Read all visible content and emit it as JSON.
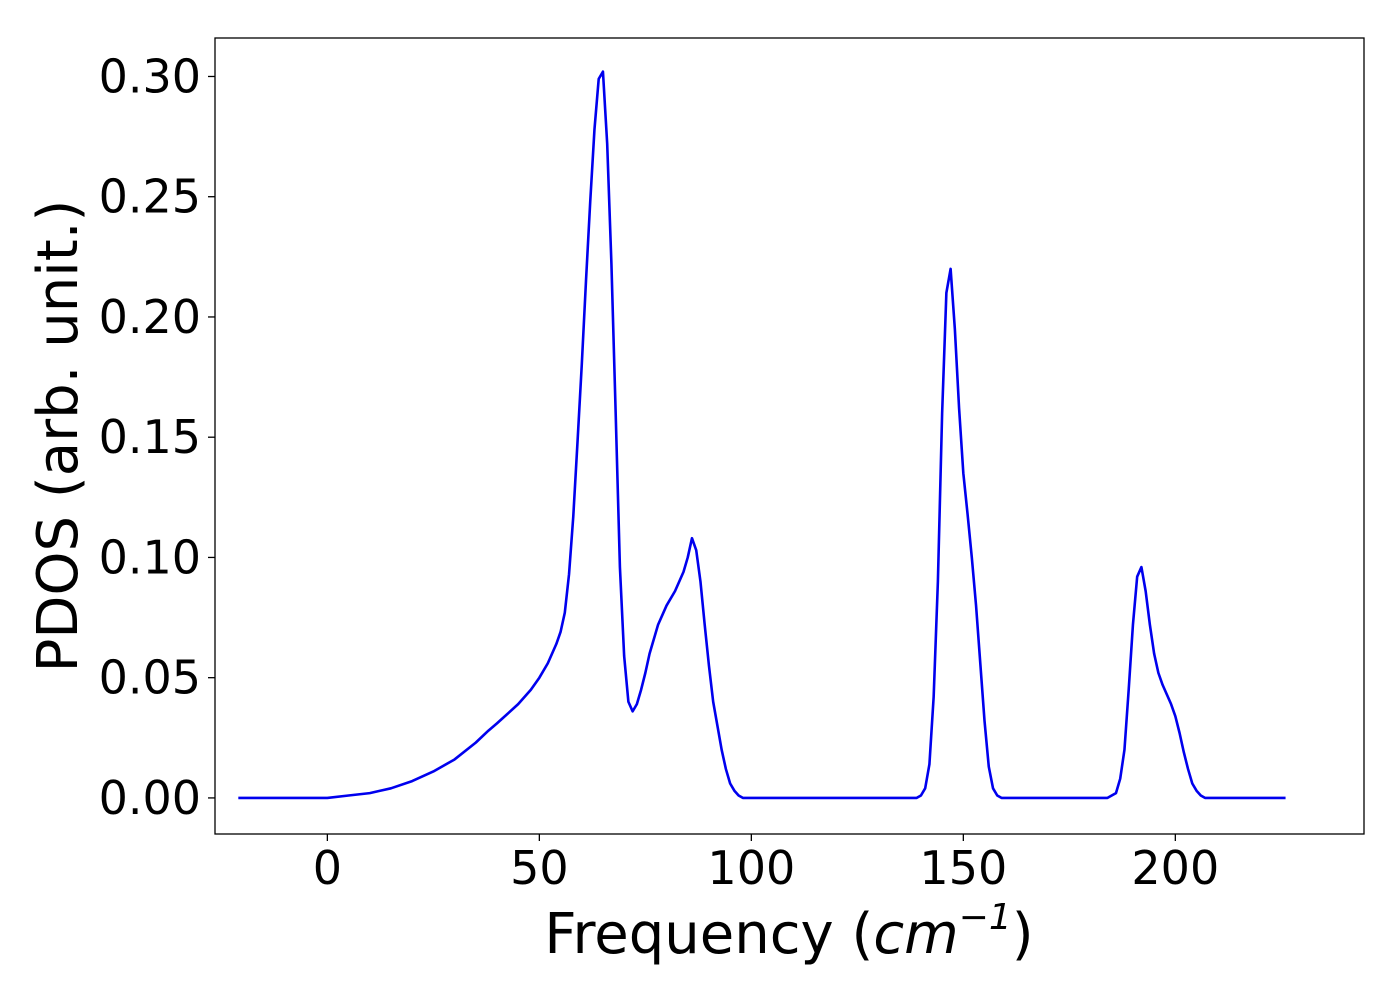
{
  "chart_data": {
    "type": "line",
    "title": "",
    "xlabel_prefix": "Frequency (",
    "xlabel_unit": "cm",
    "xlabel_exponent": "−1",
    "xlabel_suffix": ")",
    "ylabel": "PDOS (arb. unit.)",
    "xlim": [
      -26.5,
      244.5
    ],
    "ylim": [
      -0.015,
      0.316
    ],
    "xticks": [
      0,
      50,
      100,
      150,
      200
    ],
    "xtick_labels": [
      "0",
      "50",
      "100",
      "150",
      "200"
    ],
    "yticks": [
      0.0,
      0.05,
      0.1,
      0.15,
      0.2,
      0.25,
      0.3
    ],
    "ytick_labels": [
      "0.00",
      "0.05",
      "0.10",
      "0.15",
      "0.20",
      "0.25",
      "0.30"
    ],
    "grid": false,
    "series": [
      {
        "color": "#0000ee",
        "x": [
          -21,
          0,
          5,
          10,
          15,
          20,
          25,
          30,
          35,
          38,
          40,
          45,
          48,
          50,
          52,
          54,
          55,
          56,
          57,
          58,
          59,
          60,
          61,
          62,
          63,
          64,
          65,
          66,
          67,
          68,
          69,
          70,
          71,
          72,
          73,
          74,
          75,
          76,
          78,
          80,
          82,
          84,
          85,
          86,
          87,
          88,
          89,
          90,
          91,
          92,
          93,
          94,
          95,
          96,
          97,
          98,
          99,
          100,
          102,
          105,
          110,
          120,
          130,
          139,
          140,
          141,
          142,
          143,
          144,
          145,
          146,
          147,
          148,
          149,
          150,
          151,
          152,
          153,
          154,
          155,
          156,
          157,
          158,
          159,
          160,
          161,
          162,
          163,
          165,
          170,
          180,
          184,
          185,
          186,
          187,
          188,
          189,
          190,
          191,
          192,
          193,
          194,
          195,
          196,
          197,
          198,
          199,
          200,
          201,
          202,
          203,
          204,
          205,
          206,
          207,
          208,
          209,
          210,
          212,
          215,
          226
        ],
        "y": [
          0.0,
          0.0,
          0.001,
          0.002,
          0.004,
          0.007,
          0.011,
          0.016,
          0.023,
          0.028,
          0.031,
          0.039,
          0.045,
          0.05,
          0.056,
          0.064,
          0.069,
          0.077,
          0.093,
          0.117,
          0.148,
          0.18,
          0.215,
          0.248,
          0.278,
          0.299,
          0.302,
          0.272,
          0.222,
          0.16,
          0.096,
          0.059,
          0.04,
          0.036,
          0.039,
          0.045,
          0.052,
          0.06,
          0.072,
          0.08,
          0.086,
          0.094,
          0.1,
          0.108,
          0.103,
          0.09,
          0.072,
          0.055,
          0.04,
          0.03,
          0.02,
          0.012,
          0.006,
          0.003,
          0.001,
          0.0,
          0.0,
          0.0,
          0.0,
          0.0,
          0.0,
          0.0,
          0.0,
          0.0,
          0.001,
          0.004,
          0.014,
          0.042,
          0.09,
          0.16,
          0.21,
          0.22,
          0.195,
          0.162,
          0.135,
          0.118,
          0.1,
          0.08,
          0.056,
          0.032,
          0.013,
          0.004,
          0.001,
          0.0,
          0.0,
          0.0,
          0.0,
          0.0,
          0.0,
          0.0,
          0.0,
          0.0,
          0.001,
          0.002,
          0.008,
          0.02,
          0.045,
          0.072,
          0.092,
          0.096,
          0.086,
          0.072,
          0.06,
          0.052,
          0.047,
          0.043,
          0.039,
          0.034,
          0.027,
          0.019,
          0.012,
          0.006,
          0.003,
          0.001,
          0.0,
          0.0,
          0.0,
          0.0,
          0.0,
          0.0,
          0.0
        ]
      }
    ]
  }
}
